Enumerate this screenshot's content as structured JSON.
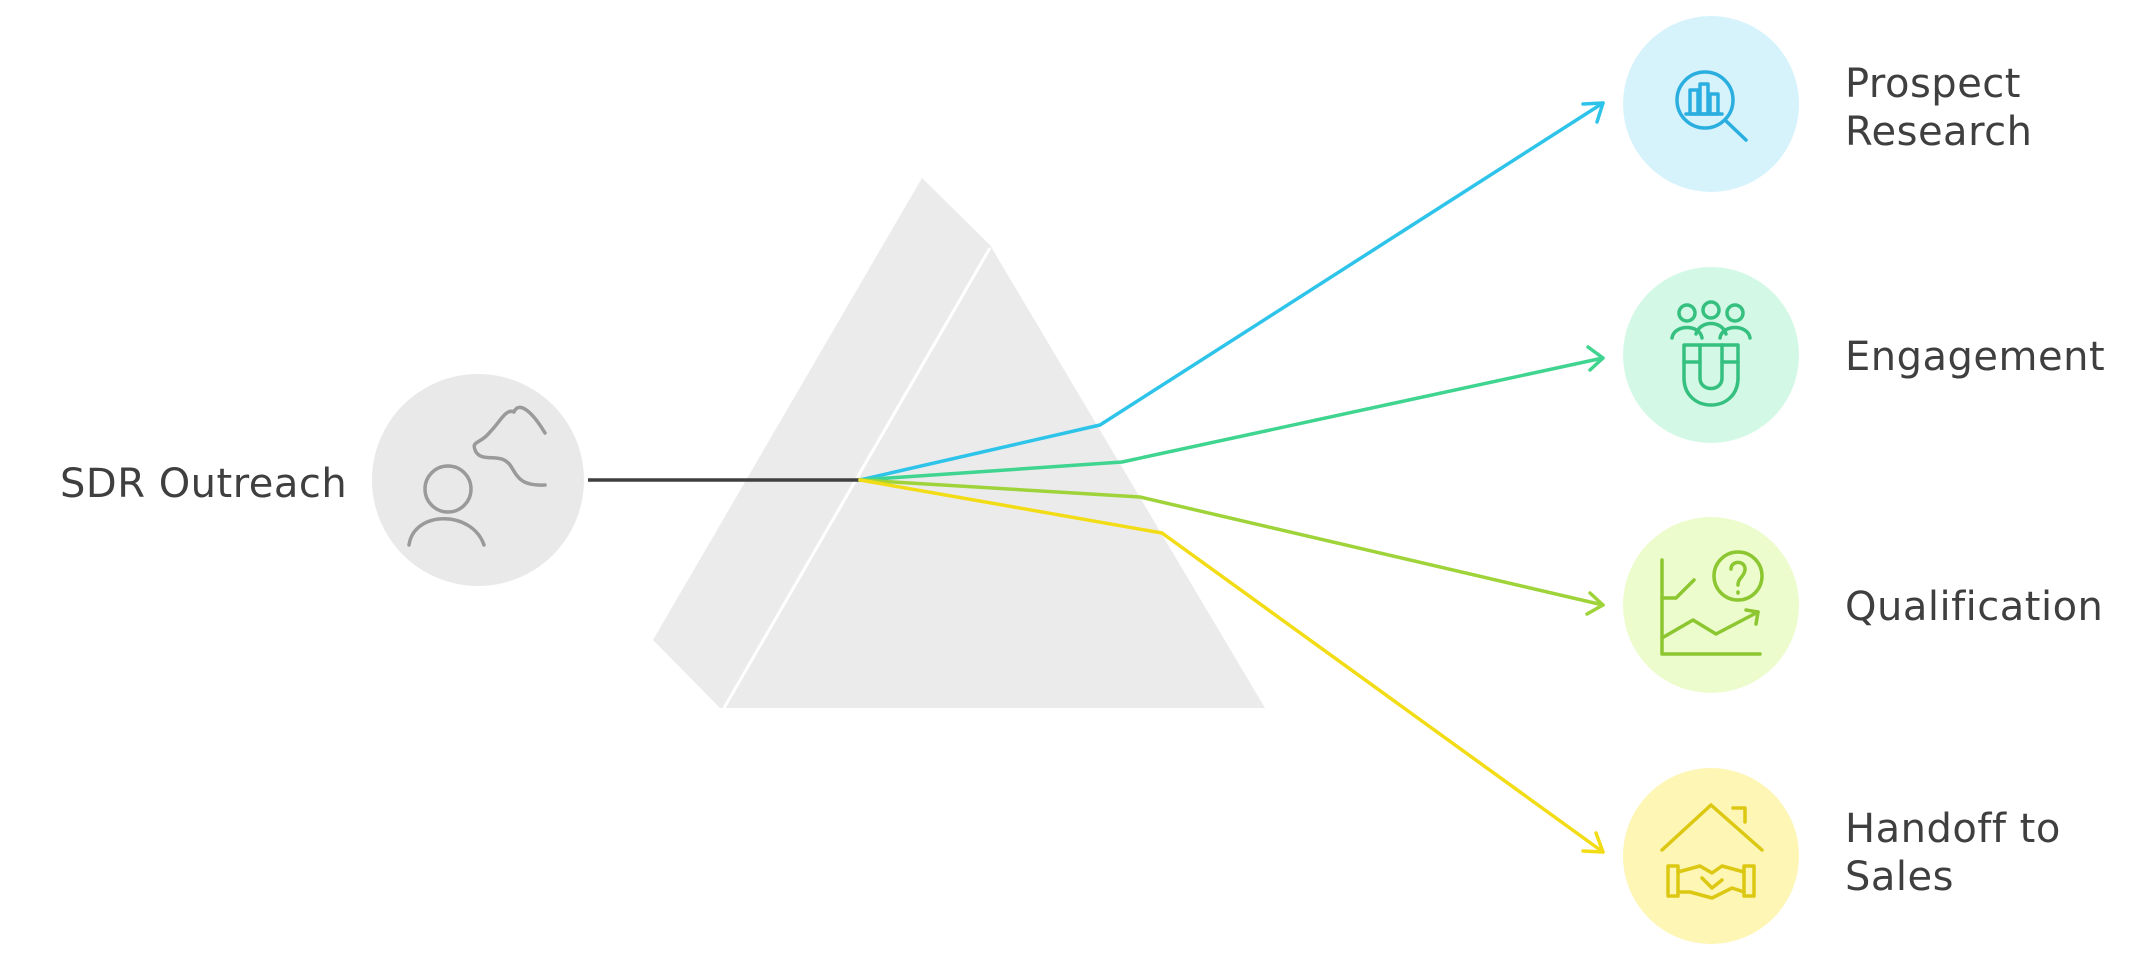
{
  "source": {
    "label": "SDR Outreach",
    "icon": "person-path-icon"
  },
  "outputs": [
    {
      "label_lines": [
        "Prospect",
        "Research"
      ],
      "icon": "research-magnifier-icon",
      "color": "#2ec4ea",
      "bg": "#d6f3fc"
    },
    {
      "label_lines": [
        "Engagement"
      ],
      "icon": "people-magnet-icon",
      "color": "#3fd48f",
      "bg": "#d3f9e6"
    },
    {
      "label_lines": [
        "Qualification"
      ],
      "icon": "chart-question-icon",
      "color": "#9fd33a",
      "bg": "#ecfccc"
    },
    {
      "label_lines": [
        "Handoff to",
        "Sales"
      ],
      "icon": "handshake-house-icon",
      "color": "#f2dc15",
      "bg": "#fdf6b4"
    }
  ],
  "colors": {
    "source_line": "#3f3f3f",
    "prism": "#ebebeb",
    "source_circle": "#e9e9e9",
    "source_icon": "#9a9a9a"
  }
}
